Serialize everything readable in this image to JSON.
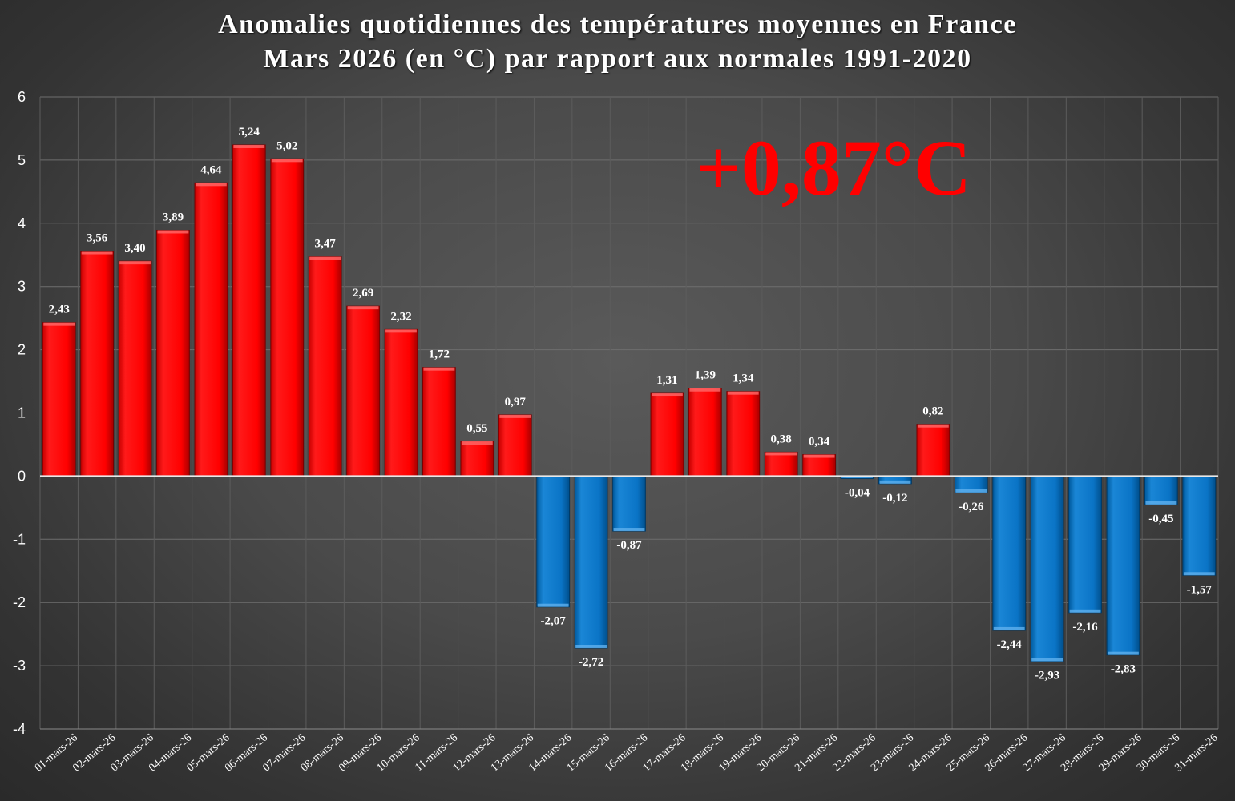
{
  "chart_data": {
    "type": "bar",
    "title": "Anomalies quotidiennes des températures moyennes en France",
    "subtitle": "Mars 2026 (en °C) par rapport aux normales 1991-2020",
    "annotation": "+0,87°C",
    "categories": [
      "01-mars-26",
      "02-mars-26",
      "03-mars-26",
      "04-mars-26",
      "05-mars-26",
      "06-mars-26",
      "07-mars-26",
      "08-mars-26",
      "09-mars-26",
      "10-mars-26",
      "11-mars-26",
      "12-mars-26",
      "13-mars-26",
      "14-mars-26",
      "15-mars-26",
      "16-mars-26",
      "17-mars-26",
      "18-mars-26",
      "19-mars-26",
      "20-mars-26",
      "21-mars-26",
      "22-mars-26",
      "23-mars-26",
      "24-mars-26",
      "25-mars-26",
      "26-mars-26",
      "27-mars-26",
      "28-mars-26",
      "29-mars-26",
      "30-mars-26",
      "31-mars-26"
    ],
    "values": [
      2.43,
      3.56,
      3.4,
      3.89,
      4.64,
      5.24,
      5.02,
      3.47,
      2.69,
      2.32,
      1.72,
      0.55,
      0.97,
      -2.07,
      -2.72,
      -0.87,
      1.31,
      1.39,
      1.34,
      0.38,
      0.34,
      -0.04,
      -0.12,
      0.82,
      -0.26,
      -2.44,
      -2.93,
      -2.16,
      -2.83,
      -0.45,
      -1.57
    ],
    "value_labels": [
      "2,43",
      "3,56",
      "3,40",
      "3,89",
      "4,64",
      "5,24",
      "5,02",
      "3,47",
      "2,69",
      "2,32",
      "1,72",
      "0,55",
      "0,97",
      "-2,07",
      "-2,72",
      "-0,87",
      "1,31",
      "1,39",
      "1,34",
      "0,38",
      "0,34",
      "-0,04",
      "-0,12",
      "0,82",
      "-0,26",
      "-2,44",
      "-2,93",
      "-2,16",
      "-2,83",
      "-0,45",
      "-1,57"
    ],
    "ylim": [
      -4,
      6
    ],
    "yticks": [
      6,
      5,
      4,
      3,
      2,
      1,
      0,
      -1,
      -2,
      -3,
      -4
    ],
    "grid": true,
    "xlabel": "",
    "ylabel": "",
    "colors": {
      "positive": "#ff0000",
      "negative": "#0070c0",
      "annotation": "#ff0000"
    }
  }
}
